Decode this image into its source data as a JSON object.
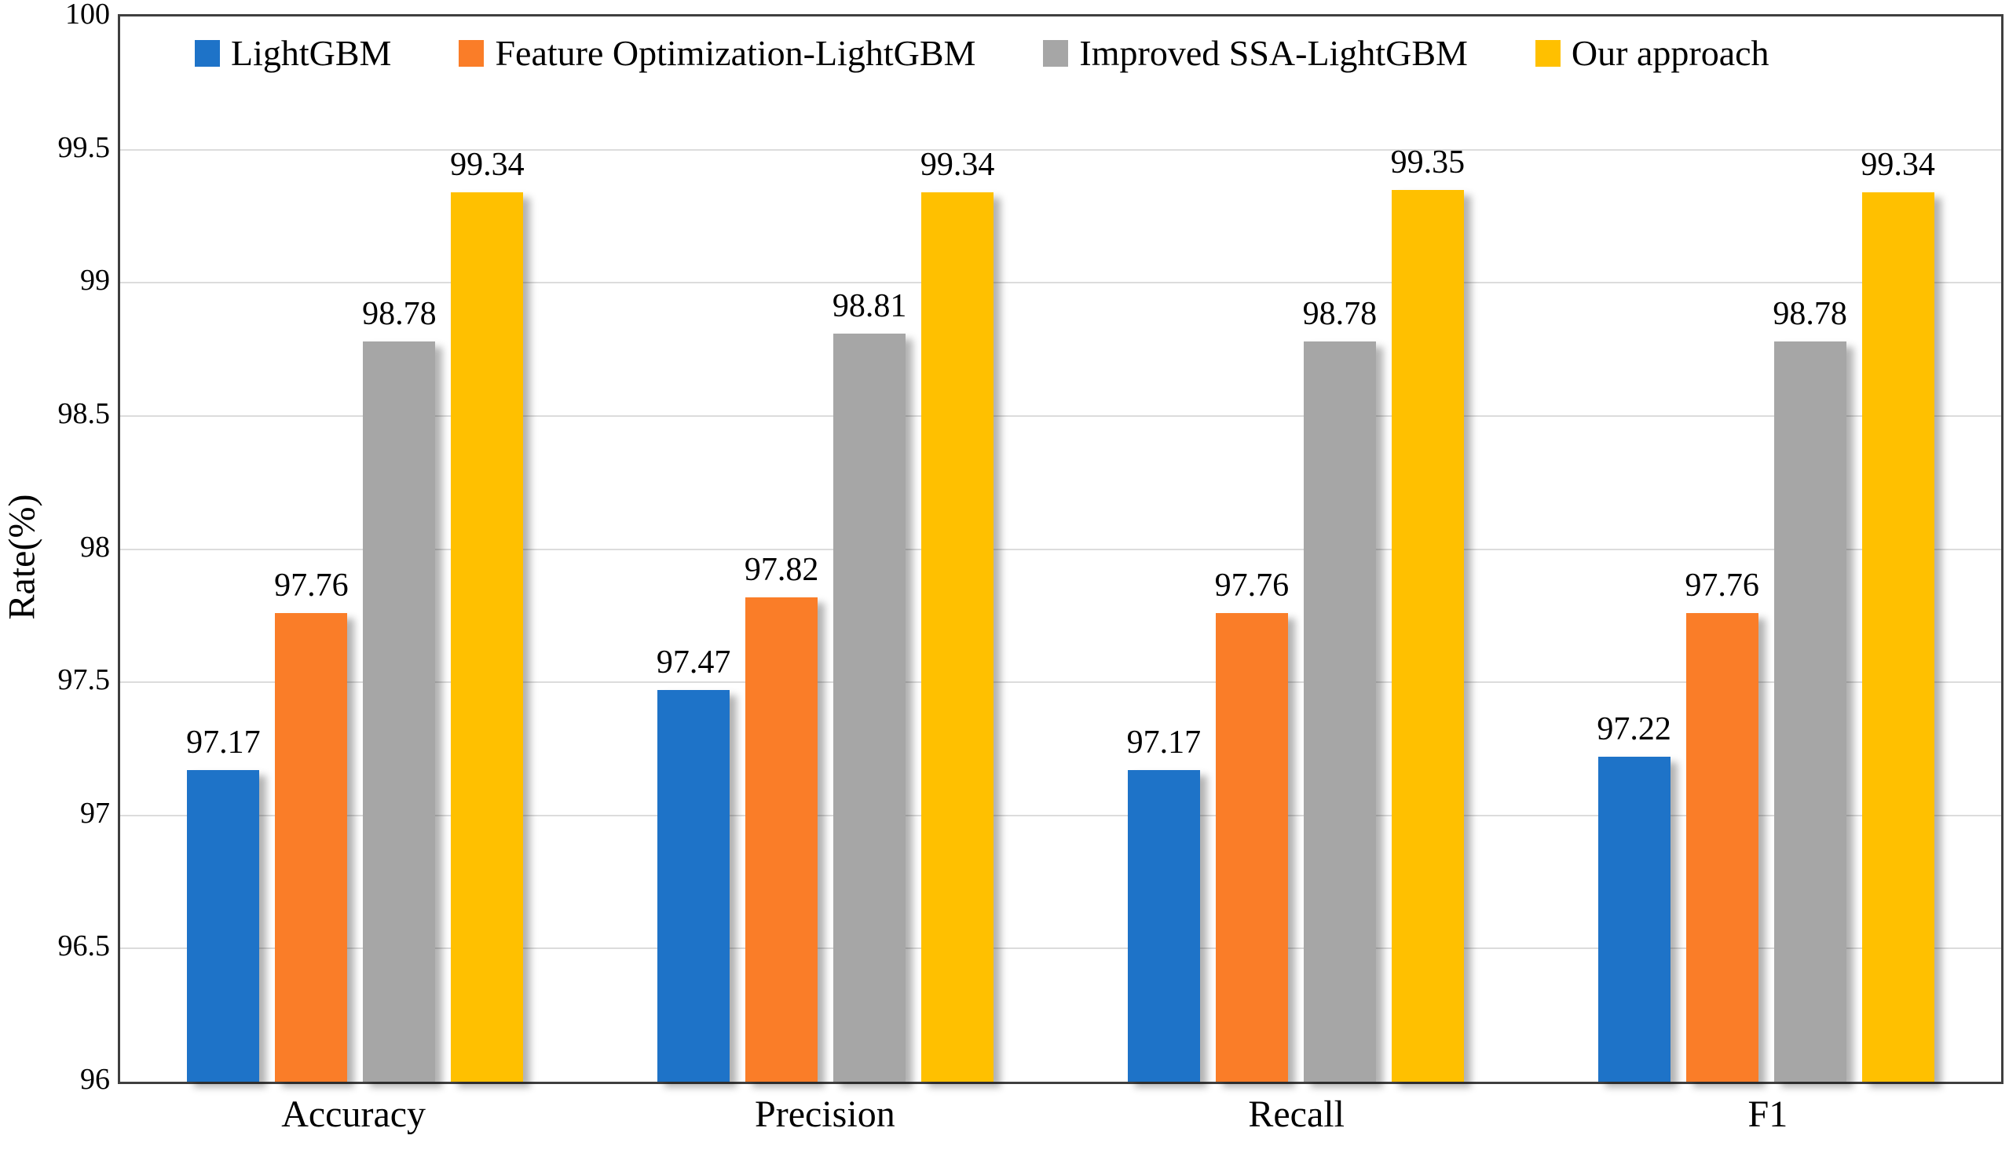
{
  "chart_data": {
    "type": "bar",
    "title": "",
    "xlabel": "",
    "ylabel": "Rate(%)",
    "ylim": [
      96,
      100
    ],
    "ytick_step": 0.5,
    "yticks": [
      "96",
      "96.5",
      "97",
      "97.5",
      "98",
      "98.5",
      "99",
      "99.5",
      "100"
    ],
    "grid": true,
    "legend_position": "top-inside",
    "value_label_decimals": 2,
    "categories": [
      "Accuracy",
      "Precision",
      "Recall",
      "F1"
    ],
    "series": [
      {
        "name": "LightGBM",
        "color": "#1e73c8",
        "values": [
          97.17,
          97.47,
          97.17,
          97.22
        ]
      },
      {
        "name": "Feature Optimization-LightGBM",
        "color": "#fa7d28",
        "values": [
          97.76,
          97.82,
          97.76,
          97.76
        ]
      },
      {
        "name": "Improved SSA-LightGBM",
        "color": "#a6a6a6",
        "values": [
          98.78,
          98.81,
          98.78,
          98.78
        ]
      },
      {
        "name": "Our approach",
        "color": "#ffc000",
        "values": [
          99.34,
          99.34,
          99.35,
          99.34
        ]
      }
    ]
  },
  "colors": {
    "gridline": "#dcdcdc",
    "axis_border": "#3f3f3f",
    "text": "#000000",
    "background": "#ffffff"
  }
}
